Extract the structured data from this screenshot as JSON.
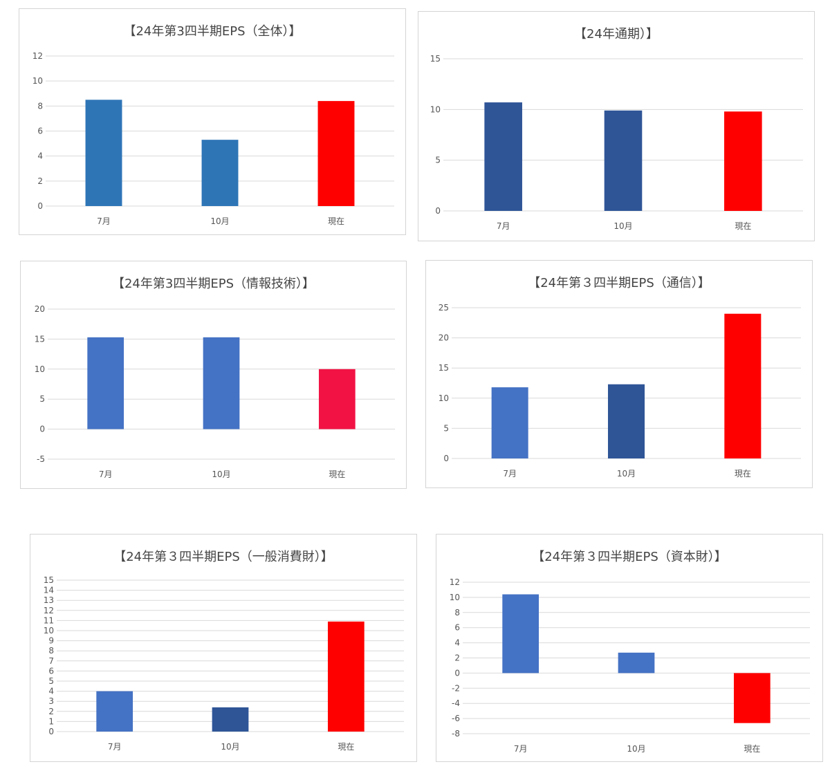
{
  "chart_data": [
    {
      "type": "bar",
      "title": "【24年第3四半期EPS（全体）】",
      "categories": [
        "7月",
        "10月",
        "現在"
      ],
      "values": [
        8.5,
        5.3,
        8.4
      ],
      "bar_colors": [
        "#2e75b6",
        "#2e75b6",
        "#ff0000"
      ],
      "ylim": [
        0,
        12
      ],
      "yticks": [
        0,
        2,
        4,
        6,
        8,
        10,
        12
      ],
      "grid": true,
      "legend": "none"
    },
    {
      "type": "bar",
      "title": "【24年通期）】",
      "categories": [
        "7月",
        "10月",
        "現在"
      ],
      "values": [
        10.7,
        9.9,
        9.8
      ],
      "bar_colors": [
        "#2f5597",
        "#2f5597",
        "#ff0000"
      ],
      "ylim": [
        0,
        15
      ],
      "yticks": [
        0,
        5,
        10,
        15
      ],
      "grid": true,
      "legend": "none"
    },
    {
      "type": "bar",
      "title": "【24年第3四半期EPS（情報技術）】",
      "categories": [
        "7月",
        "10月",
        "現在"
      ],
      "values": [
        15.3,
        15.3,
        10.0
      ],
      "bar_colors": [
        "#4472c4",
        "#4472c4",
        "#f21344"
      ],
      "ylim": [
        -5,
        20
      ],
      "yticks": [
        -5,
        0,
        5,
        10,
        15,
        20
      ],
      "grid": true,
      "legend": "none"
    },
    {
      "type": "bar",
      "title": "【24年第３四半期EPS（通信）】",
      "categories": [
        "7月",
        "10月",
        "現在"
      ],
      "values": [
        11.8,
        12.3,
        24.0
      ],
      "bar_colors": [
        "#4472c4",
        "#2f5597",
        "#ff0000"
      ],
      "ylim": [
        0,
        25
      ],
      "yticks": [
        0,
        5,
        10,
        15,
        20,
        25
      ],
      "grid": true,
      "legend": "none"
    },
    {
      "type": "bar",
      "title": "【24年第３四半期EPS（一般消費財）】",
      "categories": [
        "7月",
        "10月",
        "現在"
      ],
      "values": [
        4.0,
        2.4,
        10.9
      ],
      "bar_colors": [
        "#4472c4",
        "#2f5597",
        "#ff0000"
      ],
      "ylim": [
        0,
        15
      ],
      "yticks": [
        0,
        1,
        2,
        3,
        4,
        5,
        6,
        7,
        8,
        9,
        10,
        11,
        12,
        13,
        14,
        15
      ],
      "grid": true,
      "legend": "none"
    },
    {
      "type": "bar",
      "title": "【24年第３四半期EPS（資本財）】",
      "categories": [
        "7月",
        "10月",
        "現在"
      ],
      "values": [
        10.4,
        2.7,
        -6.6
      ],
      "bar_colors": [
        "#4472c4",
        "#4472c4",
        "#ff0000"
      ],
      "ylim": [
        -8,
        12
      ],
      "yticks": [
        -8,
        -6,
        -4,
        -2,
        0,
        2,
        4,
        6,
        8,
        10,
        12
      ],
      "grid": true,
      "legend": "none"
    }
  ]
}
